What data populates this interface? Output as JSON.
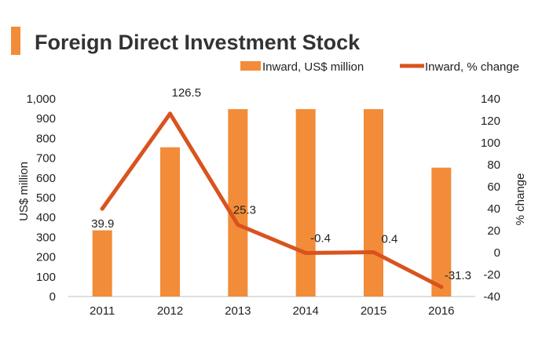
{
  "chart_data": {
    "type": "bar+line",
    "title": "Foreign Direct Investment Stock",
    "categories": [
      "2011",
      "2012",
      "2013",
      "2014",
      "2015",
      "2016"
    ],
    "series": [
      {
        "name": "Inward, US$ million",
        "type": "bar",
        "axis": "left",
        "color": "#F28C38",
        "values": [
          335,
          755,
          948,
          948,
          948,
          652
        ]
      },
      {
        "name": "Inward, % change",
        "type": "line",
        "axis": "right",
        "color": "#D9531E",
        "values": [
          39.9,
          126.5,
          25.3,
          -0.4,
          0.4,
          -31.3
        ],
        "labels": [
          "39.9",
          "126.5",
          "25.3",
          "-0.4",
          "0.4",
          "-31.3"
        ]
      }
    ],
    "ylabel": "US$ million",
    "y2label": "% change",
    "ylim": [
      0,
      1000
    ],
    "y2lim": [
      -40,
      140
    ],
    "yticks": [
      "0",
      "100",
      "200",
      "300",
      "400",
      "500",
      "600",
      "700",
      "800",
      "900",
      "1,000"
    ],
    "y2ticks": [
      "-40",
      "-20",
      "0",
      "20",
      "40",
      "60",
      "80",
      "100",
      "120",
      "140"
    ],
    "legend_position": "top-right",
    "grid": false
  },
  "colors": {
    "accent": "#F28C38",
    "title_bar": "#F28C38",
    "line": "#D9531E"
  }
}
